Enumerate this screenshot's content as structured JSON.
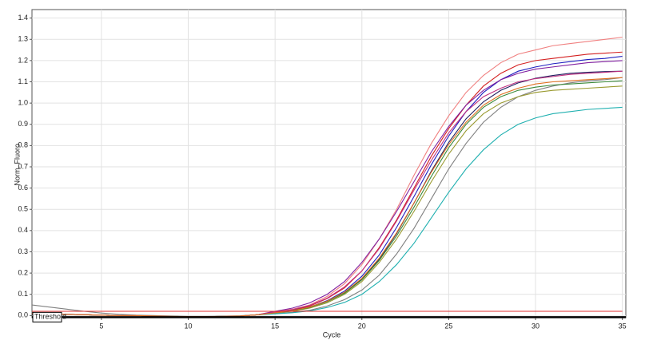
{
  "chart_data": {
    "type": "line",
    "x_label": "Cycle",
    "y_label": "Norm. Fluoro.",
    "x": [
      1,
      2,
      3,
      4,
      5,
      6,
      7,
      8,
      9,
      10,
      11,
      12,
      13,
      14,
      15,
      16,
      17,
      18,
      19,
      20,
      21,
      22,
      23,
      24,
      25,
      26,
      27,
      28,
      29,
      30,
      31,
      32,
      33,
      34,
      35
    ],
    "xlim": [
      1,
      35.2
    ],
    "ylim": [
      -0.01,
      1.44
    ],
    "xticks": [
      5,
      10,
      15,
      20,
      25,
      30,
      35
    ],
    "yticks": [
      {
        "value": 0,
        "label": "0.0"
      },
      0.1,
      0.2,
      0.3,
      0.4,
      0.5,
      0.6,
      0.7,
      0.8,
      0.9,
      {
        "value": 1,
        "label": "1.0"
      },
      1.1,
      1.2,
      1.3,
      1.4
    ],
    "grid": true,
    "threshold": {
      "value": 0,
      "label": "Threshold",
      "color": "#000000"
    },
    "series": [
      {
        "color": "#f08080",
        "values": [
          0.01,
          0.008,
          0.006,
          0.004,
          0.002,
          0,
          0,
          -0.002,
          -0.004,
          -0.005,
          -0.005,
          -0.004,
          -0.002,
          0.004,
          0.02,
          0.03,
          0.05,
          0.09,
          0.15,
          0.24,
          0.36,
          0.5,
          0.66,
          0.81,
          0.94,
          1.05,
          1.13,
          1.19,
          1.23,
          1.25,
          1.27,
          1.28,
          1.29,
          1.3,
          1.31
        ]
      },
      {
        "color": "#d42020",
        "values": [
          0.01,
          0.008,
          0.006,
          0.004,
          0.002,
          0,
          0,
          -0.002,
          -0.004,
          -0.005,
          -0.005,
          -0.004,
          -0.002,
          0.004,
          0.015,
          0.025,
          0.045,
          0.08,
          0.13,
          0.21,
          0.32,
          0.45,
          0.6,
          0.75,
          0.88,
          0.99,
          1.08,
          1.14,
          1.18,
          1.2,
          1.21,
          1.22,
          1.23,
          1.235,
          1.24
        ]
      },
      {
        "color": "#2020c0",
        "values": [
          0.01,
          0.008,
          0.006,
          0.004,
          0.002,
          0,
          0,
          -0.002,
          -0.004,
          -0.005,
          -0.005,
          -0.004,
          -0.002,
          0.004,
          0.014,
          0.024,
          0.04,
          0.07,
          0.115,
          0.185,
          0.285,
          0.415,
          0.56,
          0.71,
          0.845,
          0.96,
          1.05,
          1.11,
          1.15,
          1.17,
          1.185,
          1.195,
          1.205,
          1.21,
          1.22
        ]
      },
      {
        "color": "#8020a0",
        "values": [
          0.01,
          0.008,
          0.006,
          0.004,
          0.002,
          0,
          0,
          -0.002,
          -0.004,
          -0.005,
          -0.005,
          -0.004,
          -0.002,
          0.004,
          0.02,
          0.035,
          0.06,
          0.1,
          0.16,
          0.25,
          0.36,
          0.49,
          0.63,
          0.77,
          0.89,
          0.99,
          1.06,
          1.11,
          1.14,
          1.16,
          1.17,
          1.18,
          1.19,
          1.195,
          1.2
        ]
      },
      {
        "color": "#202060",
        "values": [
          0.01,
          0.008,
          0.006,
          0.004,
          0.002,
          0,
          0,
          -0.002,
          -0.004,
          -0.005,
          -0.005,
          -0.004,
          -0.002,
          0.004,
          0.014,
          0.024,
          0.04,
          0.067,
          0.108,
          0.171,
          0.265,
          0.386,
          0.529,
          0.68,
          0.815,
          0.926,
          1.006,
          1.06,
          1.095,
          1.117,
          1.13,
          1.14,
          1.145,
          1.148,
          1.15
        ]
      },
      {
        "color": "#808080",
        "values": [
          0.05,
          0.04,
          0.03,
          0.02,
          0.012,
          0.006,
          0.002,
          0,
          -0.002,
          -0.004,
          -0.004,
          -0.003,
          -0.001,
          0.004,
          0.01,
          0.015,
          0.025,
          0.045,
          0.075,
          0.12,
          0.19,
          0.29,
          0.41,
          0.55,
          0.69,
          0.81,
          0.91,
          0.98,
          1.03,
          1.06,
          1.08,
          1.095,
          1.105,
          1.11,
          1.12
        ]
      },
      {
        "color": "#9a9a30",
        "values": [
          0.01,
          0.008,
          0.006,
          0.004,
          0.002,
          0,
          0,
          -0.002,
          -0.004,
          -0.005,
          -0.005,
          -0.004,
          -0.002,
          0.004,
          0.012,
          0.02,
          0.035,
          0.06,
          0.1,
          0.16,
          0.25,
          0.36,
          0.49,
          0.63,
          0.76,
          0.87,
          0.95,
          1,
          1.03,
          1.05,
          1.06,
          1.065,
          1.07,
          1.075,
          1.08
        ]
      },
      {
        "color": "#20b0b0",
        "values": [
          0.01,
          0.008,
          0.006,
          0.004,
          0.002,
          0,
          0,
          -0.002,
          -0.004,
          -0.005,
          -0.005,
          -0.004,
          -0.002,
          0.004,
          0.008,
          0.013,
          0.022,
          0.038,
          0.062,
          0.1,
          0.16,
          0.24,
          0.34,
          0.46,
          0.58,
          0.69,
          0.78,
          0.85,
          0.9,
          0.93,
          0.95,
          0.96,
          0.97,
          0.975,
          0.98
        ]
      },
      {
        "color": "#3a8a3a",
        "values": [
          0.01,
          0.008,
          0.006,
          0.004,
          0.002,
          0,
          0,
          -0.002,
          -0.004,
          -0.005,
          -0.005,
          -0.004,
          -0.002,
          0.004,
          0.013,
          0.022,
          0.038,
          0.065,
          0.105,
          0.168,
          0.26,
          0.375,
          0.51,
          0.655,
          0.79,
          0.9,
          0.98,
          1.03,
          1.06,
          1.075,
          1.085,
          1.09,
          1.095,
          1.1,
          1.105
        ]
      },
      {
        "color": "#c03080",
        "values": [
          0.01,
          0.008,
          0.006,
          0.004,
          0.002,
          0,
          0,
          -0.002,
          -0.004,
          -0.005,
          -0.005,
          -0.004,
          -0.002,
          0.004,
          0.016,
          0.028,
          0.048,
          0.082,
          0.135,
          0.21,
          0.315,
          0.445,
          0.59,
          0.73,
          0.86,
          0.96,
          1.03,
          1.07,
          1.1,
          1.115,
          1.125,
          1.135,
          1.14,
          1.145,
          1.15
        ]
      },
      {
        "color": "#e07020",
        "values": [
          0.01,
          0.008,
          0.006,
          0.004,
          0.002,
          0,
          0,
          -0.002,
          -0.004,
          -0.005,
          -0.005,
          -0.004,
          -0.002,
          0.004,
          0.013,
          0.023,
          0.04,
          0.068,
          0.11,
          0.175,
          0.27,
          0.39,
          0.53,
          0.675,
          0.805,
          0.91,
          0.99,
          1.04,
          1.07,
          1.09,
          1.1,
          1.105,
          1.11,
          1.115,
          1.12
        ]
      },
      {
        "color": "#e03030",
        "values": [
          0.02,
          0.02,
          0.02,
          0.02,
          0.02,
          0.02,
          0.02,
          0.02,
          0.02,
          0.02,
          0.02,
          0.02,
          0.02,
          0.02,
          0.02,
          0.02,
          0.02,
          0.02,
          0.02,
          0.02,
          0.02,
          0.02,
          0.02,
          0.02,
          0.02,
          0.02,
          0.02,
          0.02,
          0.02,
          0.02,
          0.02,
          0.02,
          0.02,
          0.02,
          0.02
        ]
      }
    ]
  }
}
